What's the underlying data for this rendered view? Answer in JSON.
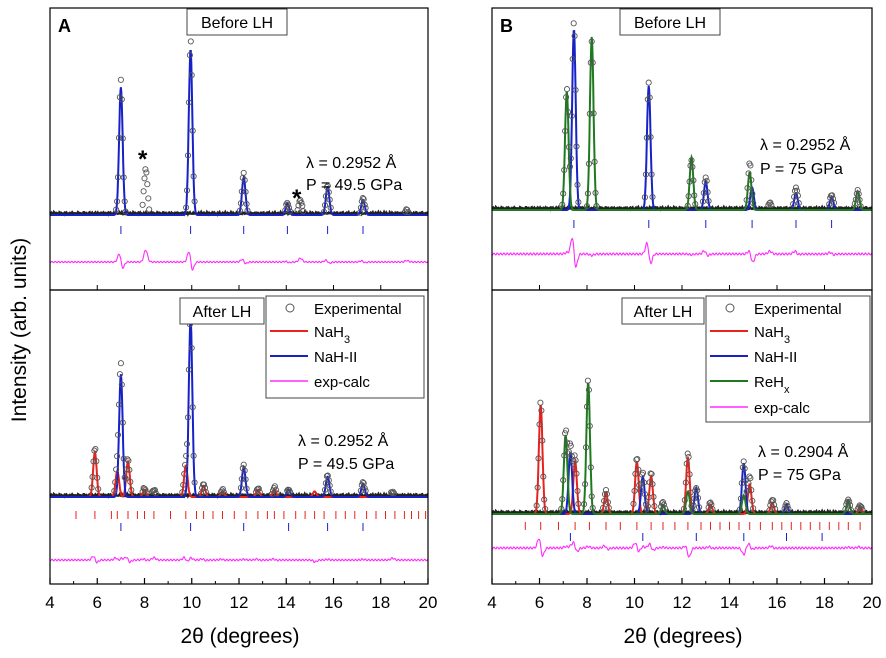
{
  "figure": {
    "y_axis_label": "Intensity (arb. units)",
    "colors": {
      "experimental": "#555555",
      "nah3": "#e8231e",
      "nah2": "#1621c8",
      "rehx": "#1f7a1f",
      "diff": "#ff2bff"
    }
  },
  "chart_data": [
    {
      "type": "line",
      "panel": "A",
      "position": "top",
      "title": "Before LH",
      "annotations": [
        "λ = 0.2952 Å",
        "P = 49.5 GPa"
      ],
      "markers": [
        "*",
        "*"
      ],
      "xlabel": "2θ (degrees)",
      "xlim": [
        4,
        20
      ],
      "xticks": [
        "4",
        "6",
        "8",
        "10",
        "12",
        "14",
        "16",
        "18",
        "20"
      ],
      "series": [
        {
          "name": "Experimental",
          "peaks": [
            [
              7.0,
              0.72
            ],
            [
              8.05,
              0.25
            ],
            [
              9.95,
              0.93
            ],
            [
              12.2,
              0.22
            ],
            [
              14.05,
              0.06
            ],
            [
              14.6,
              0.08
            ],
            [
              15.75,
              0.16
            ],
            [
              17.25,
              0.09
            ],
            [
              19.1,
              0.03
            ]
          ]
        },
        {
          "name": "NaH-II",
          "peaks": [
            [
              7.0,
              0.68
            ],
            [
              9.95,
              0.88
            ],
            [
              12.2,
              0.2
            ],
            [
              14.05,
              0.06
            ],
            [
              15.75,
              0.15
            ],
            [
              17.25,
              0.08
            ]
          ]
        }
      ],
      "tick_marks": {
        "NaH-II": [
          7.0,
          9.95,
          12.2,
          14.05,
          15.75,
          17.25
        ]
      }
    },
    {
      "type": "line",
      "panel": "A",
      "position": "bottom",
      "title": "After LH",
      "annotations": [
        "λ = 0.2952 Å",
        "P = 49.5 GPa"
      ],
      "legend": [
        "Experimental",
        "NaH3",
        "NaH-II",
        "exp-calc"
      ],
      "xlabel": "2θ (degrees)",
      "xlim": [
        4,
        20
      ],
      "xticks": [
        "4",
        "6",
        "8",
        "10",
        "12",
        "14",
        "16",
        "18",
        "20"
      ],
      "series": [
        {
          "name": "Experimental",
          "peaks": [
            [
              5.9,
              0.26
            ],
            [
              6.85,
              0.15
            ],
            [
              7.0,
              0.7
            ],
            [
              7.3,
              0.2
            ],
            [
              8.0,
              0.05
            ],
            [
              8.4,
              0.04
            ],
            [
              9.75,
              0.18
            ],
            [
              9.95,
              1.0
            ],
            [
              10.5,
              0.07
            ],
            [
              11.3,
              0.04
            ],
            [
              12.2,
              0.17
            ],
            [
              12.8,
              0.05
            ],
            [
              13.5,
              0.05
            ],
            [
              14.1,
              0.04
            ],
            [
              15.75,
              0.12
            ],
            [
              17.25,
              0.08
            ],
            [
              18.5,
              0.03
            ]
          ]
        },
        {
          "name": "NaH3",
          "peaks": [
            [
              5.9,
              0.24
            ],
            [
              6.85,
              0.14
            ],
            [
              7.3,
              0.19
            ],
            [
              8.0,
              0.04
            ],
            [
              9.75,
              0.17
            ],
            [
              10.5,
              0.06
            ],
            [
              11.3,
              0.03
            ],
            [
              12.8,
              0.04
            ],
            [
              13.5,
              0.04
            ],
            [
              15.2,
              0.03
            ]
          ]
        },
        {
          "name": "NaH-II",
          "peaks": [
            [
              7.0,
              0.66
            ],
            [
              9.95,
              0.96
            ],
            [
              12.2,
              0.16
            ],
            [
              14.1,
              0.04
            ],
            [
              15.75,
              0.11
            ],
            [
              17.25,
              0.07
            ]
          ]
        }
      ],
      "tick_marks": {
        "NaH3": [
          5.1,
          5.9,
          6.6,
          6.85,
          7.3,
          7.7,
          8.0,
          8.4,
          9.1,
          9.75,
          10.2,
          10.5,
          10.9,
          11.3,
          11.8,
          12.3,
          12.8,
          13.2,
          13.5,
          13.9,
          14.4,
          14.8,
          15.2,
          15.6,
          16.1,
          16.5,
          16.9,
          17.4,
          17.8,
          18.2,
          18.6,
          19.0,
          19.3,
          19.6,
          19.9
        ],
        "NaH-II": [
          7.0,
          9.95,
          12.2,
          14.1,
          15.75,
          17.25
        ]
      }
    },
    {
      "type": "line",
      "panel": "B",
      "position": "top",
      "title": "Before LH",
      "annotations": [
        "λ = 0.2952 Å",
        "P = 75 GPa"
      ],
      "xlabel": "2θ (degrees)",
      "xlim": [
        4,
        20
      ],
      "xticks": [
        "4",
        "6",
        "8",
        "10",
        "12",
        "14",
        "16",
        "18",
        "20"
      ],
      "series": [
        {
          "name": "Experimental",
          "peaks": [
            [
              7.15,
              0.65
            ],
            [
              7.45,
              1.0
            ],
            [
              8.2,
              0.9
            ],
            [
              10.6,
              0.68
            ],
            [
              12.4,
              0.27
            ],
            [
              13.0,
              0.17
            ],
            [
              14.85,
              0.25
            ],
            [
              15.7,
              0.04
            ],
            [
              16.8,
              0.12
            ],
            [
              18.3,
              0.08
            ],
            [
              19.4,
              0.1
            ]
          ]
        },
        {
          "name": "NaH-II",
          "peaks": [
            [
              7.45,
              0.96
            ],
            [
              10.6,
              0.66
            ],
            [
              13.0,
              0.15
            ],
            [
              14.95,
              0.12
            ],
            [
              16.8,
              0.09
            ],
            [
              18.3,
              0.07
            ]
          ]
        },
        {
          "name": "ReHx",
          "peaks": [
            [
              7.15,
              0.63
            ],
            [
              8.2,
              0.92
            ],
            [
              12.4,
              0.28
            ],
            [
              14.85,
              0.2
            ],
            [
              19.4,
              0.1
            ]
          ]
        }
      ],
      "tick_marks": {
        "NaH-II": [
          7.45,
          10.6,
          13.0,
          14.95,
          16.8,
          18.3
        ]
      }
    },
    {
      "type": "line",
      "panel": "B",
      "position": "bottom",
      "title": "After LH",
      "annotations": [
        "λ = 0.2904 Å",
        "P = 75 GPa"
      ],
      "legend": [
        "Experimental",
        "NaH3",
        "NaH-II",
        "ReHx",
        "exp-calc"
      ],
      "xlabel": "2θ (degrees)",
      "xlim": [
        4,
        20
      ],
      "xticks": [
        "4",
        "6",
        "8",
        "10",
        "12",
        "14",
        "16",
        "18",
        "20"
      ],
      "series": [
        {
          "name": "Experimental",
          "peaks": [
            [
              6.05,
              0.6
            ],
            [
              7.1,
              0.44
            ],
            [
              7.3,
              0.35
            ],
            [
              7.5,
              0.3
            ],
            [
              8.05,
              0.72
            ],
            [
              8.8,
              0.12
            ],
            [
              10.1,
              0.3
            ],
            [
              10.35,
              0.22
            ],
            [
              10.7,
              0.22
            ],
            [
              11.2,
              0.06
            ],
            [
              12.25,
              0.33
            ],
            [
              12.6,
              0.14
            ],
            [
              13.2,
              0.06
            ],
            [
              14.6,
              0.28
            ],
            [
              14.85,
              0.2
            ],
            [
              15.8,
              0.08
            ],
            [
              16.4,
              0.05
            ],
            [
              19.0,
              0.08
            ],
            [
              19.5,
              0.05
            ]
          ]
        },
        {
          "name": "NaH3",
          "peaks": [
            [
              6.05,
              0.58
            ],
            [
              7.5,
              0.28
            ],
            [
              8.8,
              0.11
            ],
            [
              10.1,
              0.28
            ],
            [
              10.7,
              0.2
            ],
            [
              12.25,
              0.3
            ],
            [
              13.2,
              0.05
            ],
            [
              14.85,
              0.16
            ],
            [
              15.8,
              0.06
            ],
            [
              19.5,
              0.04
            ]
          ]
        },
        {
          "name": "NaH-II",
          "peaks": [
            [
              7.3,
              0.33
            ],
            [
              10.35,
              0.2
            ],
            [
              12.6,
              0.14
            ],
            [
              14.6,
              0.27
            ],
            [
              16.4,
              0.05
            ]
          ]
        },
        {
          "name": "ReHx",
          "peaks": [
            [
              7.1,
              0.42
            ],
            [
              8.05,
              0.7
            ],
            [
              11.2,
              0.05
            ],
            [
              12.25,
              0.12
            ],
            [
              14.6,
              0.1
            ],
            [
              19.0,
              0.07
            ]
          ]
        }
      ],
      "tick_marks": {
        "NaH3": [
          5.4,
          6.05,
          6.8,
          7.5,
          8.1,
          8.8,
          9.4,
          10.1,
          10.7,
          11.2,
          11.7,
          12.25,
          12.8,
          13.2,
          13.6,
          14.0,
          14.4,
          14.85,
          15.3,
          15.8,
          16.2,
          16.6,
          17.0,
          17.4,
          17.8,
          18.2,
          18.6,
          19.0,
          19.5
        ],
        "NaH-II": [
          7.3,
          10.35,
          12.6,
          14.6,
          16.4,
          17.9
        ]
      }
    }
  ]
}
